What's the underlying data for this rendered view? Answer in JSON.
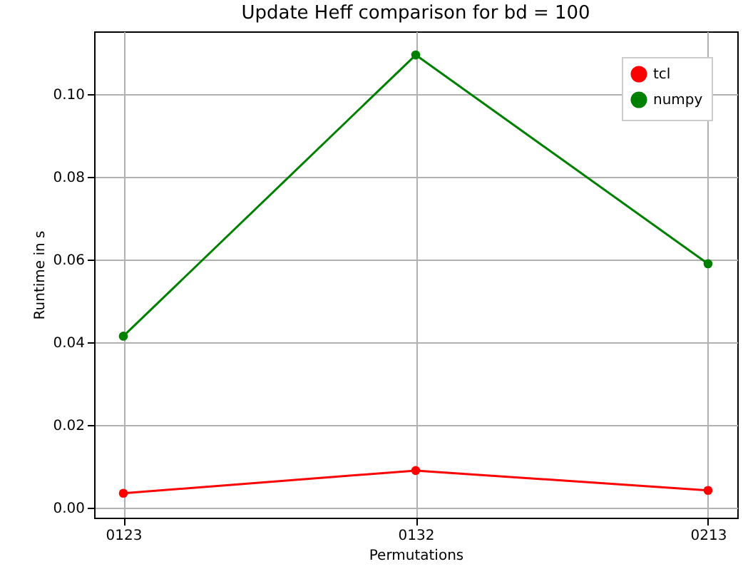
{
  "chart_data": {
    "type": "line",
    "title": "Update Heff comparison for bd = 100",
    "xlabel": "Permutations",
    "ylabel": "Runtime in s",
    "categories": [
      "0123",
      "0132",
      "0213"
    ],
    "series": [
      {
        "name": "tcl",
        "color": "#ff0000",
        "values": [
          0.0035,
          0.009,
          0.0042
        ]
      },
      {
        "name": "numpy",
        "color": "#008000",
        "values": [
          0.0415,
          0.1095,
          0.059
        ]
      }
    ],
    "ylim": [
      -0.0024,
      0.1152
    ],
    "yticks": [
      {
        "value": 0,
        "label": "0.00"
      },
      {
        "value": 0.02,
        "label": "0.02"
      },
      {
        "value": 0.04,
        "label": "0.04"
      },
      {
        "value": 0.06,
        "label": "0.06"
      },
      {
        "value": 0.08,
        "label": "0.08"
      },
      {
        "value": 0.1,
        "label": "0.10"
      }
    ],
    "grid": true,
    "legend": "top right",
    "marker": "circle",
    "line_style": "solid"
  }
}
